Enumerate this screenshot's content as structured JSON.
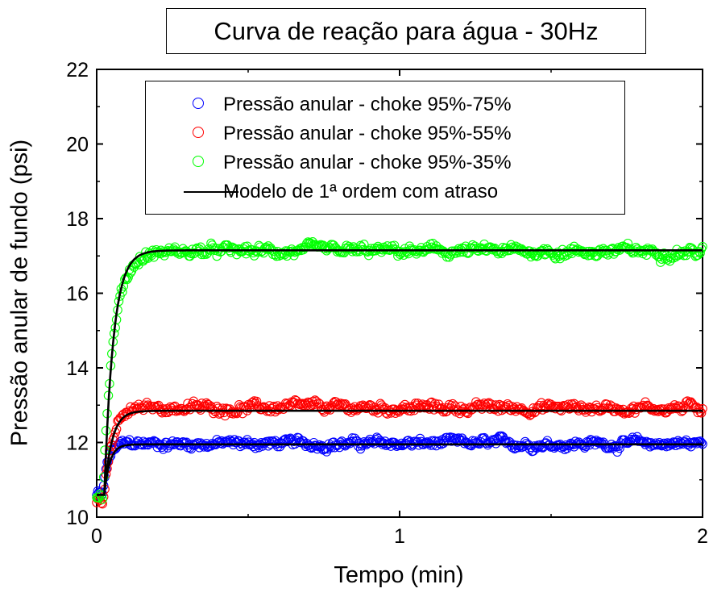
{
  "chart_data": {
    "type": "scatter",
    "title": "Curva de reação para água - 30Hz",
    "xlabel": "Tempo (min)",
    "ylabel": "Pressão anular de fundo (psi)",
    "xlim": [
      0,
      2
    ],
    "ylim": [
      10,
      22
    ],
    "x_ticks": [
      "0",
      "1",
      "2"
    ],
    "y_ticks": [
      "10",
      "12",
      "14",
      "16",
      "18",
      "20",
      "22"
    ],
    "grid": false,
    "legend_position": "top",
    "series": [
      {
        "name": "Pressão anular - choke 95%-75%",
        "kind": "scatter",
        "color": "#0000ff",
        "initial": 10.6,
        "final": 11.97,
        "delay": 0.02,
        "tau": 0.018,
        "noise": 0.12
      },
      {
        "name": "Pressão anular - choke 95%-55%",
        "kind": "scatter",
        "color": "#ff0000",
        "initial": 10.5,
        "final": 12.93,
        "delay": 0.02,
        "tau": 0.03,
        "noise": 0.13
      },
      {
        "name": "Pressão anular - choke 95%-35%",
        "kind": "scatter",
        "color": "#00ff00",
        "initial": 10.6,
        "final": 17.12,
        "delay": 0.02,
        "tau": 0.035,
        "noise": 0.14
      },
      {
        "name": "Modelo de 1ª ordem com atraso",
        "kind": "line",
        "color": "#000000",
        "curves": [
          {
            "initial": 10.6,
            "final": 11.95,
            "delay": 0.025,
            "tau": 0.018
          },
          {
            "initial": 10.6,
            "final": 12.85,
            "delay": 0.025,
            "tau": 0.025
          },
          {
            "initial": 10.6,
            "final": 17.15,
            "delay": 0.025,
            "tau": 0.03
          }
        ]
      }
    ]
  }
}
